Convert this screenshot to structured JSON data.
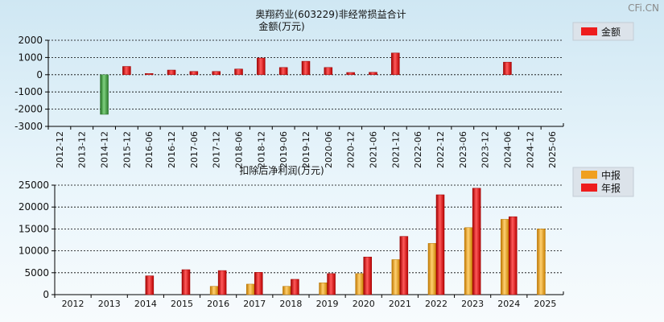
{
  "watermark": "CFi.CN",
  "chart_data": [
    {
      "type": "bar",
      "title": "奥翔药业(603229)非经常损益合计",
      "subtitle": "金额(万元)",
      "categories": [
        "2012-12",
        "2013-12",
        "2014-12",
        "2015-12",
        "2016-06",
        "2016-12",
        "2017-06",
        "2017-12",
        "2018-06",
        "2018-12",
        "2019-06",
        "2019-12",
        "2020-06",
        "2020-12",
        "2021-06",
        "2021-12",
        "2022-06",
        "2022-12",
        "2023-06",
        "2023-12",
        "2024-06",
        "2024-12",
        "2025-06"
      ],
      "series": [
        {
          "name": "金额",
          "color": "#ee1c1c",
          "values": [
            null,
            null,
            -2300,
            480,
            70,
            270,
            190,
            190,
            330,
            970,
            420,
            780,
            420,
            130,
            140,
            1260,
            null,
            null,
            null,
            null,
            730,
            null,
            null
          ]
        }
      ],
      "yticks": [
        2000,
        1000,
        0,
        -1000,
        -2000,
        -3000
      ],
      "ylim": [
        -3000,
        2000
      ],
      "negative_color": "#3c9a3c",
      "legend_position": "top-right",
      "grid": true
    },
    {
      "type": "bar",
      "title": "扣除后净利润(万元)",
      "categories": [
        "2012",
        "2013",
        "2014",
        "2015",
        "2016",
        "2017",
        "2018",
        "2019",
        "2020",
        "2021",
        "2022",
        "2023",
        "2024",
        "2025"
      ],
      "series": [
        {
          "name": "中报",
          "color": "#f0a020",
          "values": [
            null,
            null,
            null,
            null,
            1900,
            2400,
            1900,
            2700,
            4800,
            8000,
            11700,
            15300,
            17200,
            15000
          ]
        },
        {
          "name": "年报",
          "color": "#ee1c1c",
          "values": [
            null,
            null,
            4300,
            5700,
            5500,
            5100,
            3500,
            4800,
            8600,
            13300,
            22800,
            24300,
            17800,
            null
          ]
        }
      ],
      "yticks": [
        25000,
        20000,
        15000,
        10000,
        5000,
        0
      ],
      "ylim": [
        0,
        25000
      ],
      "legend_position": "top-right",
      "grid": true
    }
  ]
}
